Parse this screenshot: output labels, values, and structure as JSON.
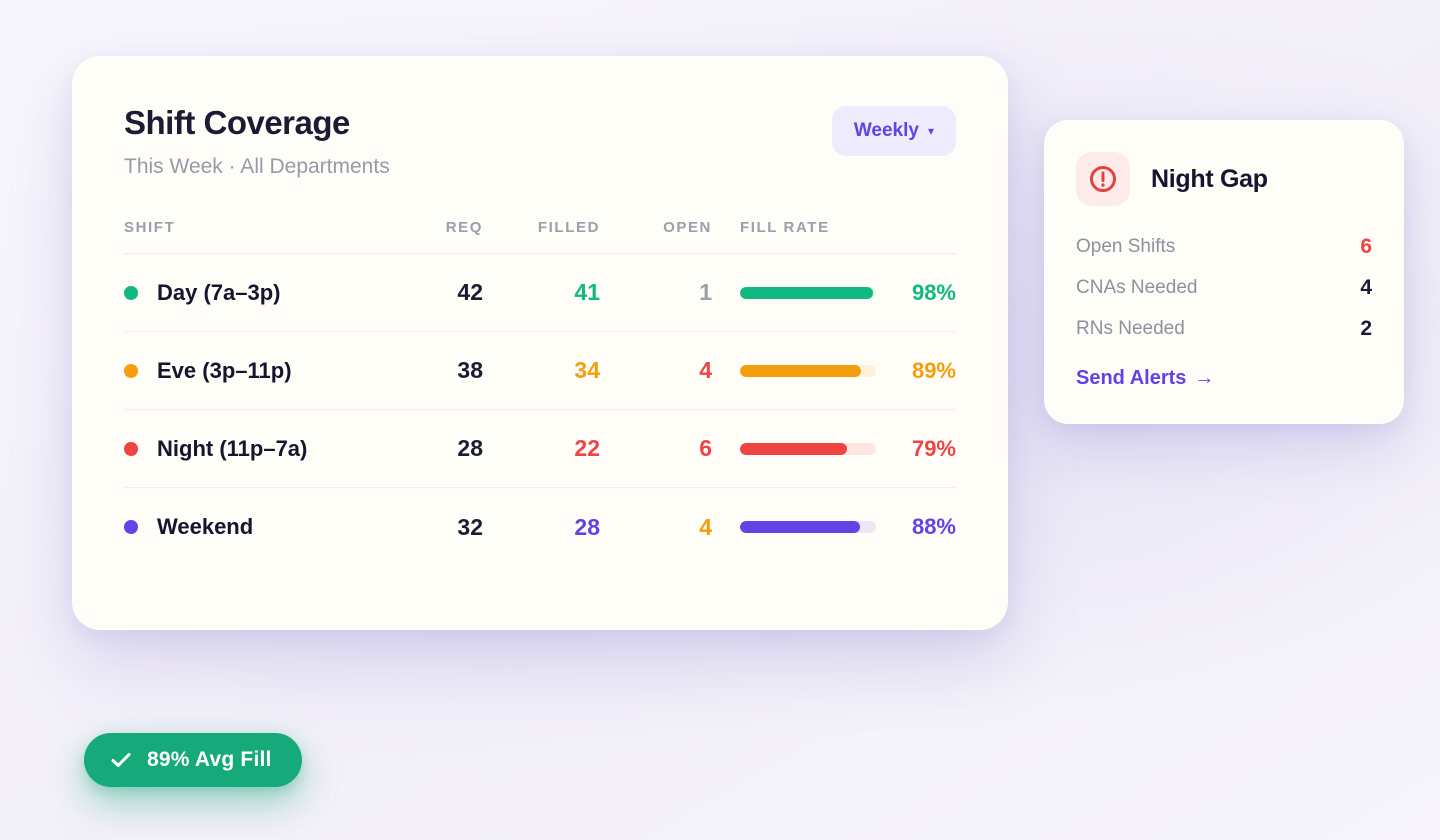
{
  "main_card": {
    "title": "Shift Coverage",
    "subtitle": "This Week · All Departments",
    "period_button": {
      "label": "Weekly",
      "caret": "▾"
    },
    "table": {
      "headers": [
        "SHIFT",
        "REQ",
        "FILLED",
        "OPEN",
        "FILL RATE"
      ],
      "rows": [
        {
          "name": "Day (7a–3p)",
          "req": "42",
          "filled": "41",
          "open": "1",
          "fill_rate": "98%",
          "fill_pct": 98,
          "color": "#10b981",
          "open_color": "#9aa0ab"
        },
        {
          "name": "Eve (3p–11p)",
          "req": "38",
          "filled": "34",
          "open": "4",
          "fill_rate": "89%",
          "fill_pct": 89,
          "color": "#f59e0b",
          "open_color": "#ee4444"
        },
        {
          "name": "Night (11p–7a)",
          "req": "28",
          "filled": "22",
          "open": "6",
          "fill_rate": "79%",
          "fill_pct": 79,
          "color": "#ee4444",
          "open_color": "#ee4444"
        },
        {
          "name": "Weekend",
          "req": "32",
          "filled": "28",
          "open": "4",
          "fill_rate": "88%",
          "fill_pct": 88,
          "color": "#6143e6",
          "open_color": "#f59e0b"
        }
      ]
    }
  },
  "alert_card": {
    "title": "Night Gap",
    "icon": "alert-circle",
    "icon_color": "#e6403d",
    "stats": [
      {
        "label": "Open Shifts",
        "value": "6",
        "value_color": "#ee4444"
      },
      {
        "label": "CNAs Needed",
        "value": "4",
        "value_color": "#1d1a34"
      },
      {
        "label": "RNs Needed",
        "value": "2",
        "value_color": "#1d1a34"
      }
    ],
    "link": {
      "label": "Send Alerts",
      "arrow": "→"
    }
  },
  "badge": {
    "label": "89% Avg Fill",
    "color": "#16a97a"
  },
  "accent_colors": {
    "purple": "#6143e6",
    "green": "#10b981",
    "orange": "#f59e0b",
    "red": "#ee4444"
  }
}
